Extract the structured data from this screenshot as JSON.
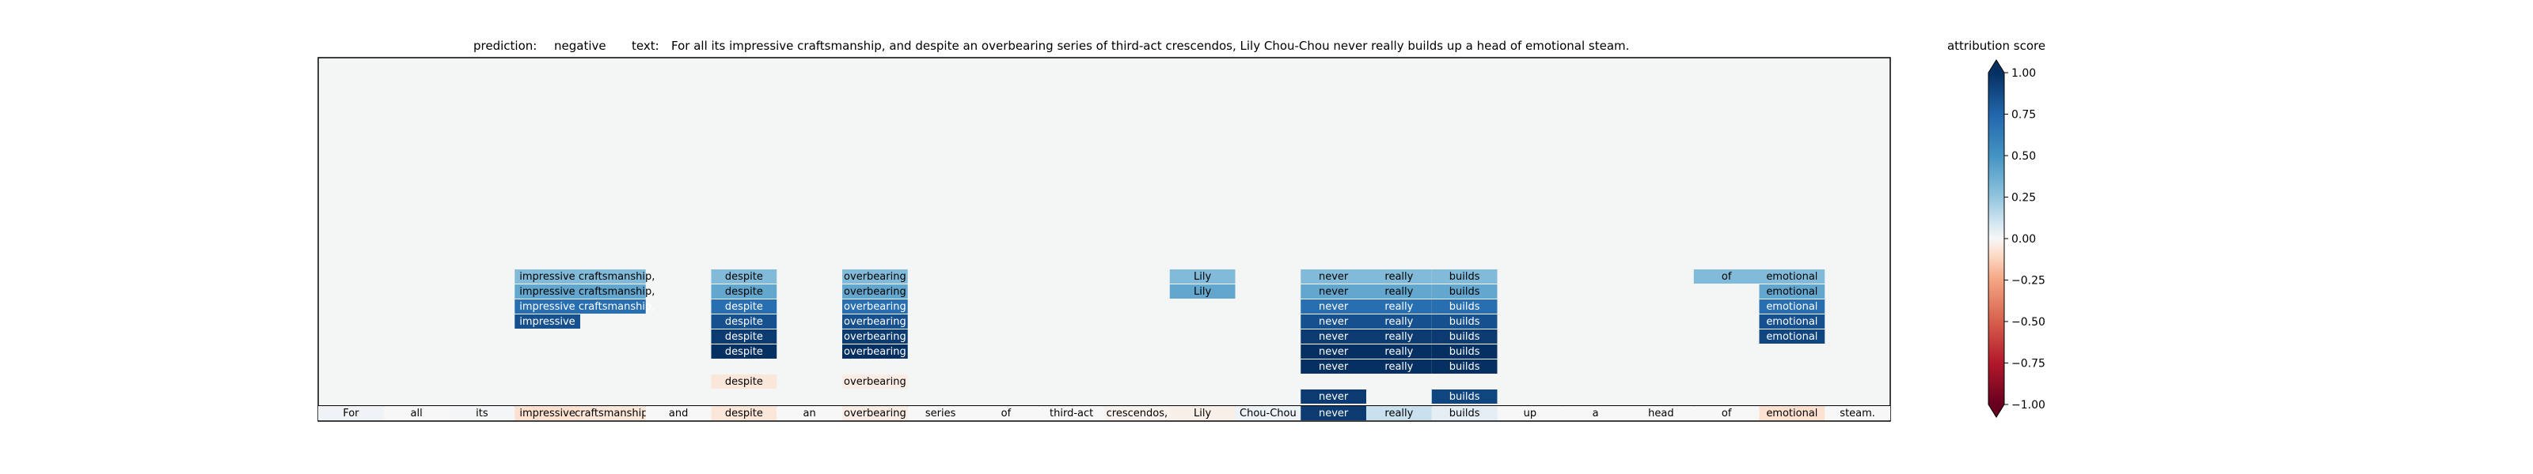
{
  "header": {
    "prediction_label": "prediction:",
    "prediction": "negative",
    "text_label": "text:",
    "text": "For all its impressive craftsmanship, and despite an overbearing series of third-act crescendos, Lily Chou-Chou never really builds up a head of emotional steam."
  },
  "chart_data": {
    "type": "heatmap",
    "tokens": [
      "For",
      "all",
      "its",
      "impressive",
      "craftsmanship,",
      "and",
      "despite",
      "an",
      "overbearing",
      "series",
      "of",
      "third-act",
      "crescendos,",
      "Lily",
      "Chou-Chou",
      "never",
      "really",
      "builds",
      "up",
      "a",
      "head",
      "of",
      "emotional",
      "steam."
    ],
    "base_row_attributions": [
      0.02,
      0.0,
      0.01,
      -0.08,
      -0.06,
      0.0,
      -0.06,
      0.0,
      -0.04,
      0.0,
      0.0,
      0.0,
      -0.02,
      -0.03,
      0.03,
      0.95,
      0.12,
      0.05,
      0.0,
      0.0,
      0.0,
      0.0,
      -0.08,
      0.0
    ],
    "spans": [
      {
        "start": 3,
        "words": [
          "impressive",
          "craftsmanship,"
        ],
        "labels": [
          "impressive craftsmanship,",
          "impressive craftsmanship,",
          "impressive craftsmanship,",
          "impressive"
        ],
        "values": [
          0.3,
          0.4,
          0.7,
          0.85
        ]
      },
      {
        "start": 6,
        "words": [
          "despite"
        ],
        "labels": [
          "despite",
          "despite",
          "despite",
          "despite",
          "despite",
          "despite",
          "",
          "despite"
        ],
        "values": [
          0.3,
          0.4,
          0.7,
          0.85,
          0.95,
          1.0,
          0.0,
          -0.06
        ]
      },
      {
        "start": 8,
        "words": [
          "overbearing"
        ],
        "labels": [
          "overbearing",
          "overbearing",
          "overbearing",
          "overbearing",
          "overbearing",
          "overbearing",
          "",
          "overbearing"
        ],
        "values": [
          0.3,
          0.4,
          0.7,
          0.85,
          0.95,
          1.0,
          0.0,
          -0.04
        ]
      },
      {
        "start": 13,
        "words": [
          "Lily"
        ],
        "labels": [
          "Lily",
          "Lily"
        ],
        "values": [
          0.3,
          0.4
        ]
      },
      {
        "start": 15,
        "words": [
          "never"
        ],
        "labels": [
          "never",
          "never",
          "never",
          "never",
          "never",
          "never",
          "never",
          "",
          "never"
        ],
        "values": [
          0.3,
          0.4,
          0.7,
          0.85,
          0.95,
          1.0,
          1.0,
          0.0,
          0.95
        ]
      },
      {
        "start": 16,
        "words": [
          "really"
        ],
        "labels": [
          "really",
          "really",
          "really",
          "really",
          "really",
          "really",
          "really"
        ],
        "values": [
          0.3,
          0.4,
          0.7,
          0.85,
          0.95,
          1.0,
          1.0
        ]
      },
      {
        "start": 17,
        "words": [
          "builds"
        ],
        "labels": [
          "builds",
          "builds",
          "builds",
          "builds",
          "builds",
          "builds",
          "builds",
          "",
          "builds"
        ],
        "values": [
          0.3,
          0.4,
          0.7,
          0.85,
          0.95,
          1.0,
          1.0,
          0.0,
          0.9
        ]
      },
      {
        "start": 21,
        "words": [
          "of"
        ],
        "labels": [
          "of"
        ],
        "values": [
          0.3
        ]
      },
      {
        "start": 22,
        "words": [
          "emotional"
        ],
        "labels": [
          "emotional",
          "emotional",
          "emotional",
          "emotional",
          "emotional"
        ],
        "values": [
          0.3,
          0.4,
          0.7,
          0.85,
          0.9
        ]
      }
    ],
    "colorbar": {
      "title": "attribution score",
      "ticks": [
        "1.00",
        "0.75",
        "0.50",
        "0.25",
        "0.00",
        "−0.25",
        "−0.50",
        "−0.75",
        "−1.00"
      ],
      "tick_values": [
        1.0,
        0.75,
        0.5,
        0.25,
        0.0,
        -0.25,
        -0.5,
        -0.75,
        -1.0
      ],
      "range": [
        -1,
        1
      ],
      "colormap": "RdBu"
    },
    "colors": {
      "panel_background": "#f4f6f6",
      "frame": "#000000"
    }
  }
}
